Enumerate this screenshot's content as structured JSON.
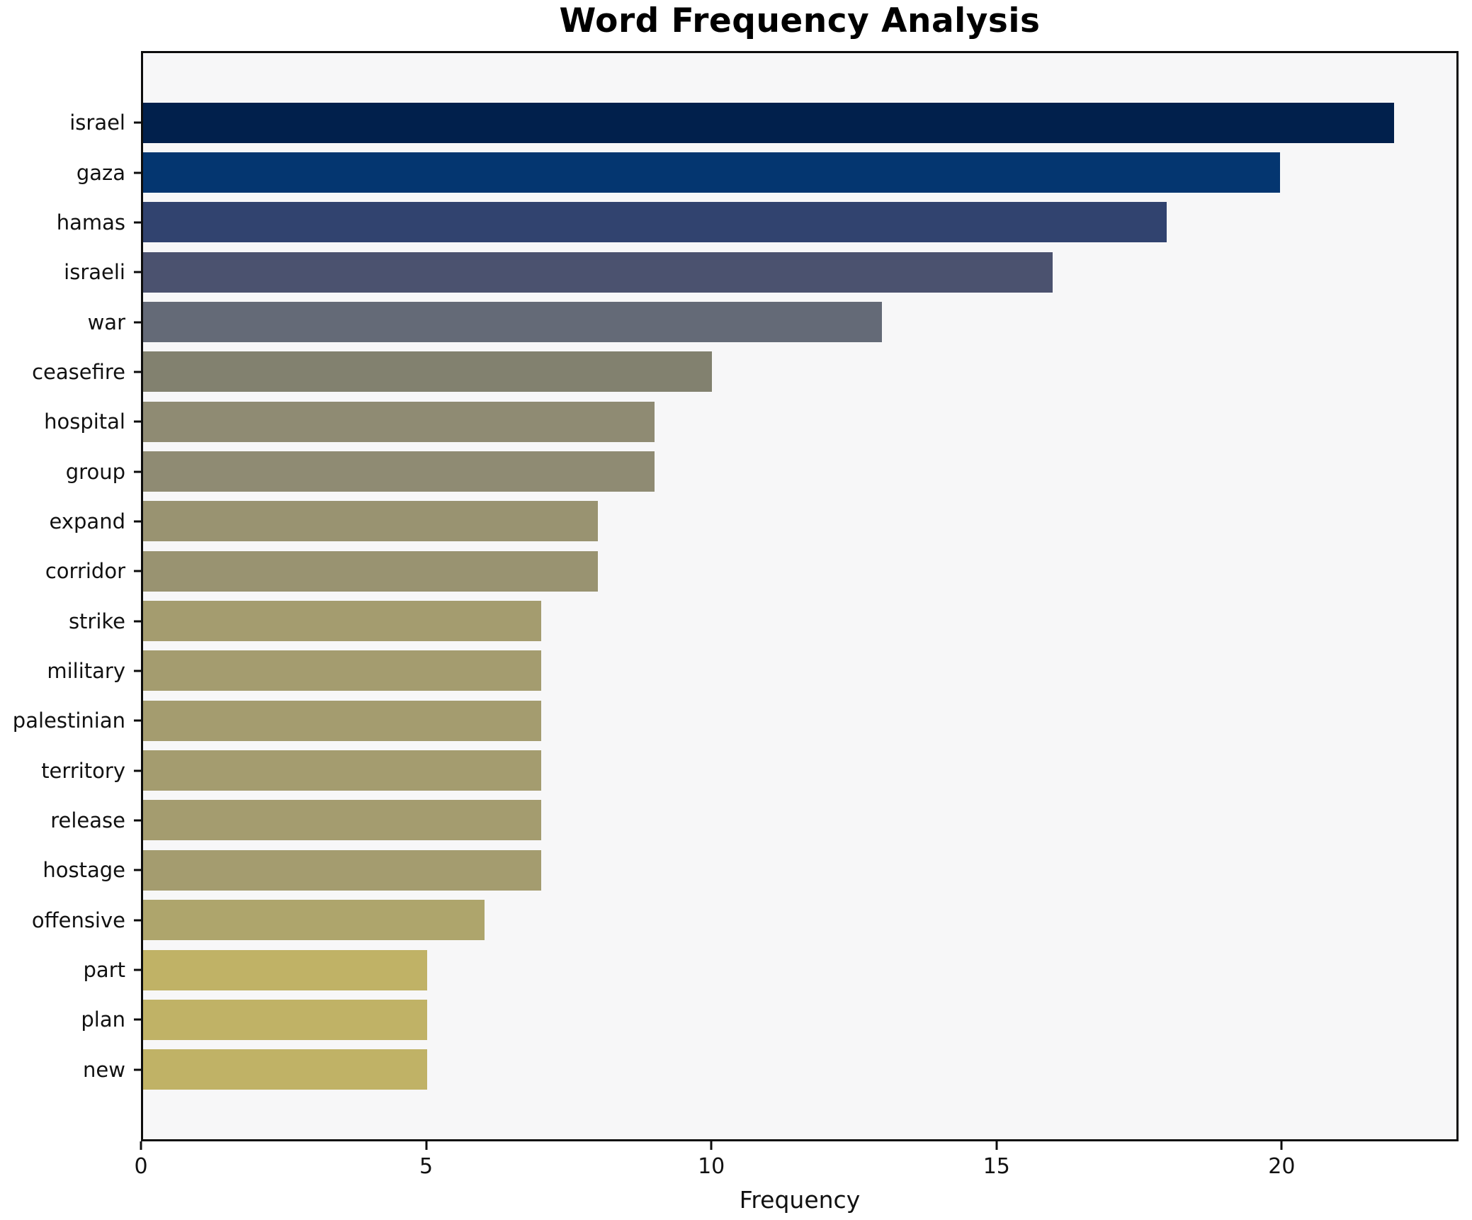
{
  "chart_data": {
    "type": "bar",
    "orientation": "horizontal",
    "title": "Word Frequency Analysis",
    "xlabel": "Frequency",
    "ylabel": "",
    "categories": [
      "israel",
      "gaza",
      "hamas",
      "israeli",
      "war",
      "ceasefire",
      "hospital",
      "group",
      "expand",
      "corridor",
      "strike",
      "military",
      "palestinian",
      "territory",
      "release",
      "hostage",
      "offensive",
      "part",
      "plan",
      "new"
    ],
    "values": [
      22,
      20,
      18,
      16,
      13,
      10,
      9,
      9,
      8,
      8,
      7,
      7,
      7,
      7,
      7,
      7,
      6,
      5,
      5,
      5
    ],
    "bar_colors": [
      "#01204c",
      "#043670",
      "#31436f",
      "#4b526f",
      "#646a77",
      "#82816f",
      "#8f8b73",
      "#8f8b73",
      "#999371",
      "#999371",
      "#a49c6f",
      "#a49c6f",
      "#a49c6f",
      "#a49c6f",
      "#a49c6f",
      "#a49c6f",
      "#aea56c",
      "#c0b266",
      "#c0b266",
      "#c0b266"
    ],
    "xticks": [
      0,
      5,
      10,
      15,
      20
    ],
    "xlim": [
      0,
      23.1
    ],
    "grid": false,
    "legend": null,
    "plot_background": "#f7f7f8",
    "figure_background": "#ffffff",
    "spine_color": "#0d0d0d"
  }
}
